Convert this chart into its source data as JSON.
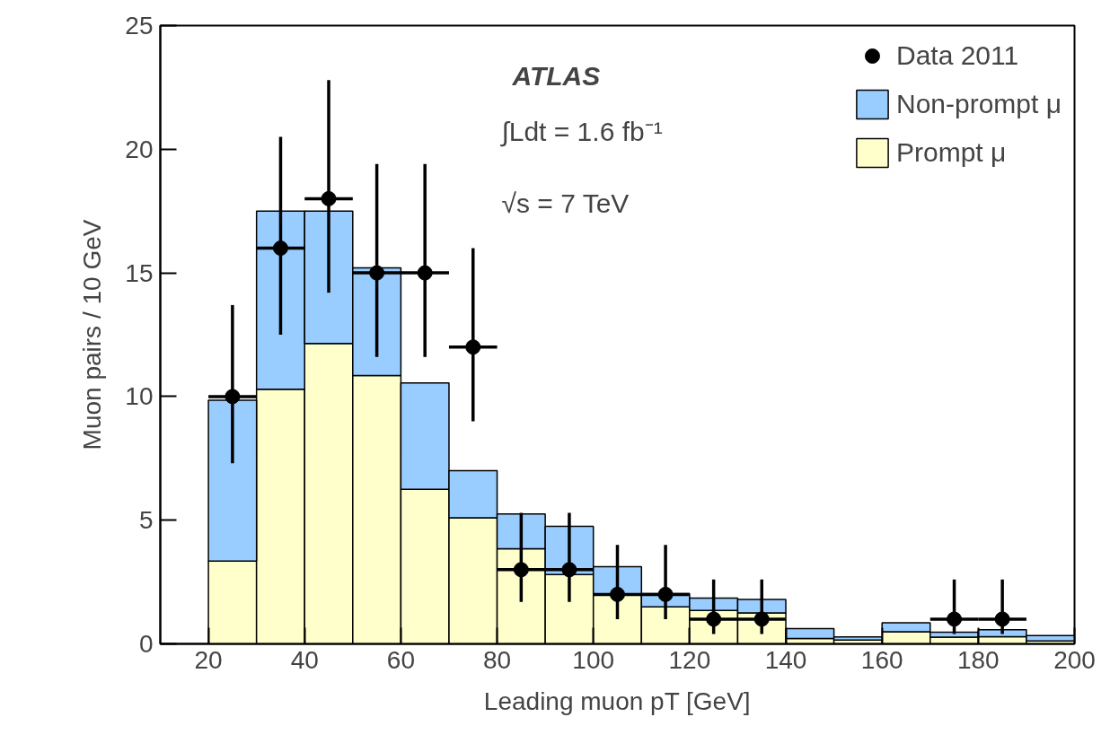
{
  "chart_data": {
    "type": "bar",
    "stacked": true,
    "xlabel": "Leading muon pT [GeV]",
    "ylabel": "Muon pairs / 10 GeV",
    "x": [
      25,
      35,
      45,
      55,
      65,
      75,
      85,
      95,
      105,
      115,
      125,
      135,
      145,
      155,
      165,
      175,
      185,
      195
    ],
    "series": [
      {
        "name": "Prompt μ",
        "color": "#ffffcc",
        "values": [
          3.35,
          10.3,
          12.15,
          10.85,
          6.25,
          5.1,
          3.85,
          2.8,
          2.0,
          1.5,
          1.35,
          1.25,
          0.22,
          0.15,
          0.49,
          0.27,
          0.29,
          0.12
        ]
      },
      {
        "name": "Non-prompt μ",
        "color": "#99ccff",
        "values": [
          6.5,
          7.2,
          5.35,
          4.35,
          4.3,
          1.9,
          1.4,
          1.95,
          1.12,
          0.53,
          0.5,
          0.55,
          0.4,
          0.13,
          0.36,
          0.2,
          0.28,
          0.22
        ]
      },
      {
        "name": "Data 2011",
        "type": "scatter",
        "color": "#000000",
        "x": [
          25,
          35,
          45,
          55,
          65,
          75,
          85,
          95,
          105,
          115,
          125,
          135,
          175,
          185
        ],
        "values": [
          10,
          16,
          18,
          15,
          15,
          12,
          3,
          3,
          2,
          2,
          1,
          1,
          1,
          1
        ],
        "errors": [
          [
            7.3,
            13.7
          ],
          [
            12.5,
            20.5
          ],
          [
            14.2,
            22.8
          ],
          [
            11.6,
            19.4
          ],
          [
            11.6,
            19.4
          ],
          [
            9.0,
            16.0
          ],
          [
            1.7,
            5.3
          ],
          [
            1.7,
            5.3
          ],
          [
            1.0,
            4.0
          ],
          [
            1.0,
            4.0
          ],
          [
            0.4,
            2.6
          ],
          [
            0.4,
            2.6
          ],
          [
            0.4,
            2.6
          ],
          [
            0.4,
            2.6
          ]
        ],
        "xerrors": [
          5,
          5,
          5,
          5,
          5,
          5,
          5,
          5,
          5,
          5,
          5,
          5,
          5,
          5
        ]
      }
    ],
    "annotations": [
      "ATLAS",
      "∫Ldt = 1.6 fb⁻¹",
      "√s = 7 TeV"
    ],
    "xlim": [
      10,
      200
    ],
    "xticks": [
      20,
      40,
      60,
      80,
      100,
      120,
      140,
      160,
      180,
      200
    ],
    "ylim": [
      0,
      25
    ],
    "yticks": [
      0,
      5,
      10,
      15,
      20,
      25
    ],
    "grid": false,
    "legend": "top right",
    "marker": "circle"
  }
}
